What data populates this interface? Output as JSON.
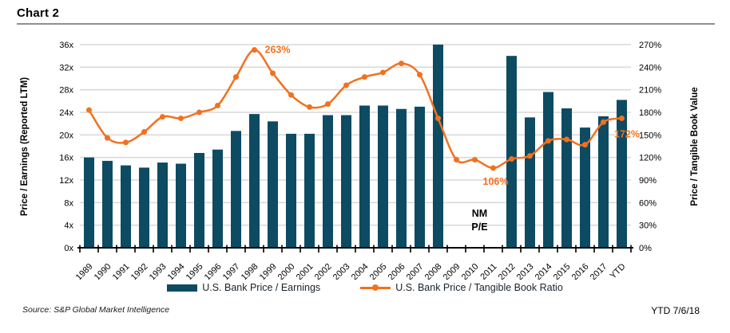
{
  "page": {
    "title": "Chart 2",
    "footer_source": "Source: S&P Global Market Intelligence",
    "footer_right": "YTD 7/6/18"
  },
  "chart_data": {
    "type": "bar",
    "title": "Chart 2",
    "categories": [
      "1989",
      "1990",
      "1991",
      "1992",
      "1993",
      "1994",
      "1995",
      "1996",
      "1997",
      "1998",
      "1999",
      "2000",
      "2001",
      "2002",
      "2003",
      "2004",
      "2005",
      "2006",
      "2007",
      "2008",
      "2009",
      "2010",
      "2011",
      "2012",
      "2013",
      "2014",
      "2015",
      "2016",
      "2017",
      "YTD"
    ],
    "series": [
      {
        "name": "U.S. Bank Price / Earnings",
        "type": "bar",
        "axis": "left",
        "color": "#0d4b63",
        "values": [
          16.0,
          15.4,
          14.6,
          14.2,
          15.1,
          14.9,
          16.8,
          17.4,
          20.7,
          23.7,
          22.4,
          20.2,
          20.2,
          23.5,
          23.5,
          25.2,
          25.2,
          24.6,
          25.0,
          36.0,
          null,
          null,
          null,
          34.0,
          23.1,
          27.6,
          24.7,
          21.3,
          23.3,
          26.2
        ]
      },
      {
        "name": "U.S. Bank Price / Tangible Book Ratio",
        "type": "line",
        "axis": "right",
        "color": "#f2711f",
        "values": [
          183,
          146,
          140,
          154,
          174,
          172,
          180,
          189,
          227,
          263,
          232,
          203,
          187,
          191,
          216,
          227,
          233,
          245,
          230,
          172,
          117,
          117,
          106,
          118,
          122,
          142,
          144,
          137,
          167,
          172
        ]
      }
    ],
    "left_axis": {
      "title": "Price / Earnings (Reported LTM)",
      "min": 0,
      "max": 36,
      "step": 4,
      "suffix": "x"
    },
    "right_axis": {
      "title": "Price / Tangible Book Value",
      "min": 0,
      "max": 270,
      "step": 30,
      "suffix": "%"
    },
    "grid": true,
    "legend_position": "bottom",
    "annotations": [
      {
        "text": "263%",
        "year": "1998",
        "value": 263,
        "placement": "right-of-point",
        "color": "#f2711f"
      },
      {
        "text": "106%",
        "year": "2011",
        "value": 106,
        "placement": "below-point",
        "color": "#f2711f"
      },
      {
        "text": "172%",
        "year": "YTD",
        "value": 172,
        "placement": "below-right",
        "color": "#f2711f"
      },
      {
        "text": "NM",
        "text2": "P/E",
        "year": "2009",
        "placement": "nm",
        "color": "#000000"
      }
    ],
    "colors": {
      "bar": "#0d4b63",
      "line": "#f2711f",
      "grid": "#d9d9d9",
      "axis": "#000000"
    }
  }
}
